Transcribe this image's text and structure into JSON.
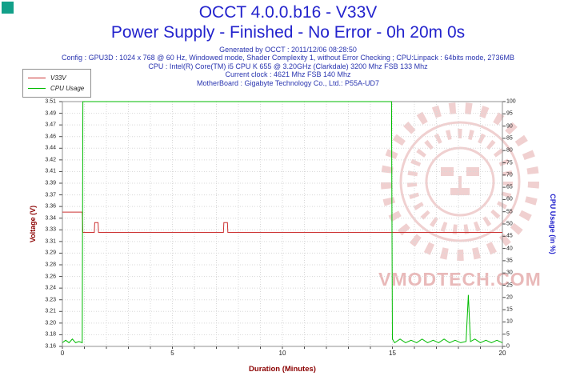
{
  "app": {
    "icon_color": "#12a089"
  },
  "header": {
    "title": "OCCT 4.0.0.b16 - V33V",
    "subtitle": "Power Supply - Finished - No Error - 0h 20m 0s",
    "info_lines": [
      "Generated by OCCT : 2011/12/06 08:28:50",
      "Config : GPU3D : 1024 x 768 @ 60 Hz, Windowed mode, Shader Complexity 1, without Error Checking ; CPU:Linpack : 64bits mode, 2736MB",
      "CPU : Intel(R) Core(TM) i5 CPU K 655 @ 3.20GHz (Clarkdale) 3200 Mhz FSB 133 Mhz",
      "Current clock : 4621 Mhz FSB 140 Mhz",
      "MotherBoard : Gigabyte Technology Co., Ltd.: P55A-UD7"
    ]
  },
  "legend": {
    "items": [
      {
        "label": "V33V",
        "color": "#cc3333"
      },
      {
        "label": "CPU Usage",
        "color": "#00bb00"
      }
    ]
  },
  "watermark": {
    "text": "VMODTECH.COM",
    "color": "#e2a2a2"
  },
  "chart_data": {
    "type": "line",
    "title": "OCCT 4.0.0.b16 - V33V",
    "subtitle": "Power Supply - Finished - No Error - 0h 20m 0s",
    "xlabel": "Duration (Minutes)",
    "ylabel_left": "Voltage (V)",
    "ylabel_right": "CPU Usage (in %)",
    "x_range": [
      0,
      20
    ],
    "x_ticks": [
      0,
      5,
      10,
      15,
      20
    ],
    "x_minor_step": 1,
    "y_left_range": [
      3.16,
      3.51
    ],
    "y_left_ticks": [
      "3.51",
      "3.49",
      "3.47",
      "3.46",
      "3.44",
      "3.42",
      "3.41",
      "3.39",
      "3.37",
      "3.36",
      "3.34",
      "3.33",
      "3.31",
      "3.29",
      "3.28",
      "3.26",
      "3.24",
      "3.23",
      "3.21",
      "3.20",
      "3.18",
      "3.16"
    ],
    "y_right_range": [
      0,
      100
    ],
    "y_right_ticks": [
      "100",
      "95",
      "90",
      "85",
      "80",
      "75",
      "70",
      "65",
      "60",
      "55",
      "50",
      "45",
      "40",
      "35",
      "30",
      "25",
      "20",
      "15",
      "10",
      "5",
      "0"
    ],
    "grid": true,
    "legend_position": "top-left",
    "series": [
      {
        "name": "V33V",
        "axis": "left",
        "color": "#cc3333",
        "points": [
          [
            0,
            3.352
          ],
          [
            0.9,
            3.352
          ],
          [
            0.93,
            3.323
          ],
          [
            1.45,
            3.323
          ],
          [
            1.47,
            3.337
          ],
          [
            1.62,
            3.337
          ],
          [
            1.64,
            3.323
          ],
          [
            7.32,
            3.323
          ],
          [
            7.34,
            3.337
          ],
          [
            7.5,
            3.337
          ],
          [
            7.52,
            3.323
          ],
          [
            20,
            3.323
          ]
        ]
      },
      {
        "name": "CPU Usage",
        "axis": "right",
        "color": "#00bb00",
        "points": [
          [
            0,
            1.5
          ],
          [
            0.15,
            2.5
          ],
          [
            0.3,
            1.5
          ],
          [
            0.45,
            3
          ],
          [
            0.6,
            1.5
          ],
          [
            0.75,
            2
          ],
          [
            0.9,
            1.5
          ],
          [
            0.93,
            100
          ],
          [
            14.96,
            100
          ],
          [
            15,
            3
          ],
          [
            15.1,
            1.5
          ],
          [
            15.35,
            3
          ],
          [
            15.6,
            1.5
          ],
          [
            15.85,
            2.5
          ],
          [
            16.1,
            1.5
          ],
          [
            16.35,
            3
          ],
          [
            16.6,
            1.5
          ],
          [
            16.85,
            2.5
          ],
          [
            17.1,
            1.5
          ],
          [
            17.35,
            3
          ],
          [
            17.6,
            1.5
          ],
          [
            17.85,
            2.5
          ],
          [
            18.1,
            1.5
          ],
          [
            18.35,
            2
          ],
          [
            18.45,
            21
          ],
          [
            18.55,
            2
          ],
          [
            18.75,
            3
          ],
          [
            19,
            1.5
          ],
          [
            19.25,
            2.5
          ],
          [
            19.5,
            1.5
          ],
          [
            19.75,
            2.5
          ],
          [
            20,
            1.5
          ]
        ]
      }
    ]
  }
}
